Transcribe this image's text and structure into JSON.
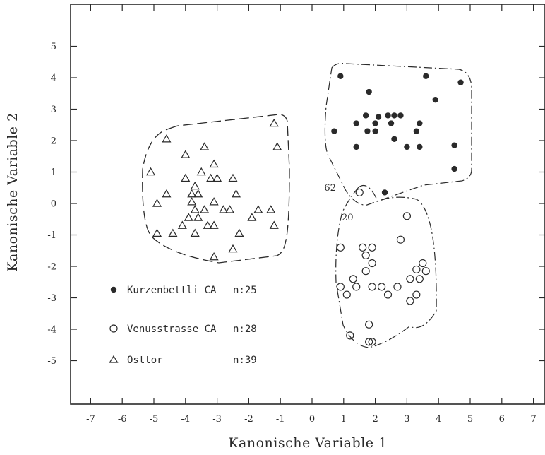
{
  "chart_data": {
    "type": "scatter",
    "title": "",
    "xlabel": "Kanonische Variable 1",
    "ylabel": "Kanonische Variable 2",
    "xlim": [
      -7.4,
      7.4
    ],
    "ylim": [
      -6.3,
      6.4
    ],
    "xticks": [
      -7,
      -6,
      -5,
      -4,
      -3,
      -2,
      -1,
      0,
      1,
      2,
      3,
      4,
      5,
      6,
      7
    ],
    "yticks": [
      -5,
      -4,
      -3,
      -2,
      -1,
      0,
      1,
      2,
      3,
      4,
      5
    ],
    "grid": false,
    "legend_position": "lower-left",
    "series": [
      {
        "name": "Kurzenbettli CA",
        "count_label": "n:25",
        "marker": "filled-circle",
        "points": [
          [
            0.9,
            4.05
          ],
          [
            1.8,
            3.55
          ],
          [
            3.6,
            4.05
          ],
          [
            4.7,
            3.85
          ],
          [
            3.9,
            3.3
          ],
          [
            1.7,
            2.8
          ],
          [
            2.1,
            2.75
          ],
          [
            2.4,
            2.8
          ],
          [
            2.6,
            2.8
          ],
          [
            2.8,
            2.8
          ],
          [
            1.4,
            2.55
          ],
          [
            2.0,
            2.55
          ],
          [
            2.5,
            2.55
          ],
          [
            3.4,
            2.55
          ],
          [
            0.7,
            2.3
          ],
          [
            1.75,
            2.3
          ],
          [
            2.0,
            2.3
          ],
          [
            3.3,
            2.3
          ],
          [
            2.6,
            2.05
          ],
          [
            1.4,
            1.8
          ],
          [
            3.0,
            1.8
          ],
          [
            3.4,
            1.8
          ],
          [
            4.5,
            1.85
          ],
          [
            4.5,
            1.1
          ],
          [
            2.3,
            0.35
          ]
        ]
      },
      {
        "name": "Venusstrasse CA",
        "count_label": "n:28",
        "marker": "open-circle",
        "points": [
          [
            1.5,
            0.35
          ],
          [
            3.0,
            -0.4
          ],
          [
            2.8,
            -1.15
          ],
          [
            0.9,
            -1.4
          ],
          [
            1.6,
            -1.4
          ],
          [
            1.9,
            -1.4
          ],
          [
            1.7,
            -1.65
          ],
          [
            1.9,
            -1.9
          ],
          [
            3.5,
            -1.9
          ],
          [
            3.3,
            -2.1
          ],
          [
            1.7,
            -2.15
          ],
          [
            3.6,
            -2.15
          ],
          [
            1.3,
            -2.4
          ],
          [
            3.1,
            -2.4
          ],
          [
            3.4,
            -2.4
          ],
          [
            0.9,
            -2.65
          ],
          [
            1.4,
            -2.65
          ],
          [
            1.9,
            -2.65
          ],
          [
            2.2,
            -2.65
          ],
          [
            2.7,
            -2.65
          ],
          [
            1.1,
            -2.9
          ],
          [
            2.4,
            -2.9
          ],
          [
            3.3,
            -2.9
          ],
          [
            3.1,
            -3.1
          ],
          [
            1.8,
            -3.85
          ],
          [
            1.8,
            -4.4
          ],
          [
            1.9,
            -4.4
          ],
          [
            1.2,
            -4.2
          ]
        ]
      },
      {
        "name": "Osttor",
        "count_label": "n:39",
        "marker": "open-triangle",
        "points": [
          [
            -1.2,
            2.55
          ],
          [
            -4.6,
            2.05
          ],
          [
            -3.4,
            1.8
          ],
          [
            -1.1,
            1.8
          ],
          [
            -4.0,
            1.55
          ],
          [
            -3.1,
            1.25
          ],
          [
            -5.1,
            1.0
          ],
          [
            -3.5,
            1.0
          ],
          [
            -4.0,
            0.8
          ],
          [
            -3.2,
            0.8
          ],
          [
            -3.0,
            0.8
          ],
          [
            -2.5,
            0.8
          ],
          [
            -3.7,
            0.55
          ],
          [
            -4.6,
            0.3
          ],
          [
            -3.8,
            0.3
          ],
          [
            -3.6,
            0.3
          ],
          [
            -2.4,
            0.3
          ],
          [
            -4.9,
            0.0
          ],
          [
            -3.8,
            0.05
          ],
          [
            -3.1,
            0.05
          ],
          [
            -3.7,
            -0.2
          ],
          [
            -3.4,
            -0.2
          ],
          [
            -2.8,
            -0.2
          ],
          [
            -2.6,
            -0.2
          ],
          [
            -1.7,
            -0.2
          ],
          [
            -1.3,
            -0.2
          ],
          [
            -3.9,
            -0.45
          ],
          [
            -3.6,
            -0.45
          ],
          [
            -1.9,
            -0.45
          ],
          [
            -3.1,
            -0.7
          ],
          [
            -3.3,
            -0.7
          ],
          [
            -4.1,
            -0.7
          ],
          [
            -1.2,
            -0.7
          ],
          [
            -4.9,
            -0.95
          ],
          [
            -4.4,
            -0.95
          ],
          [
            -3.7,
            -0.95
          ],
          [
            -2.3,
            -0.95
          ],
          [
            -2.5,
            -1.45
          ],
          [
            -3.1,
            -1.7
          ]
        ]
      }
    ],
    "annotations": [
      {
        "text": "62",
        "x": 0.75,
        "y": 0.5
      },
      {
        "text": "20",
        "x": 1.3,
        "y": -0.45
      }
    ]
  },
  "colors": {
    "ink": "#2a2a2a",
    "background": "#ffffff"
  }
}
